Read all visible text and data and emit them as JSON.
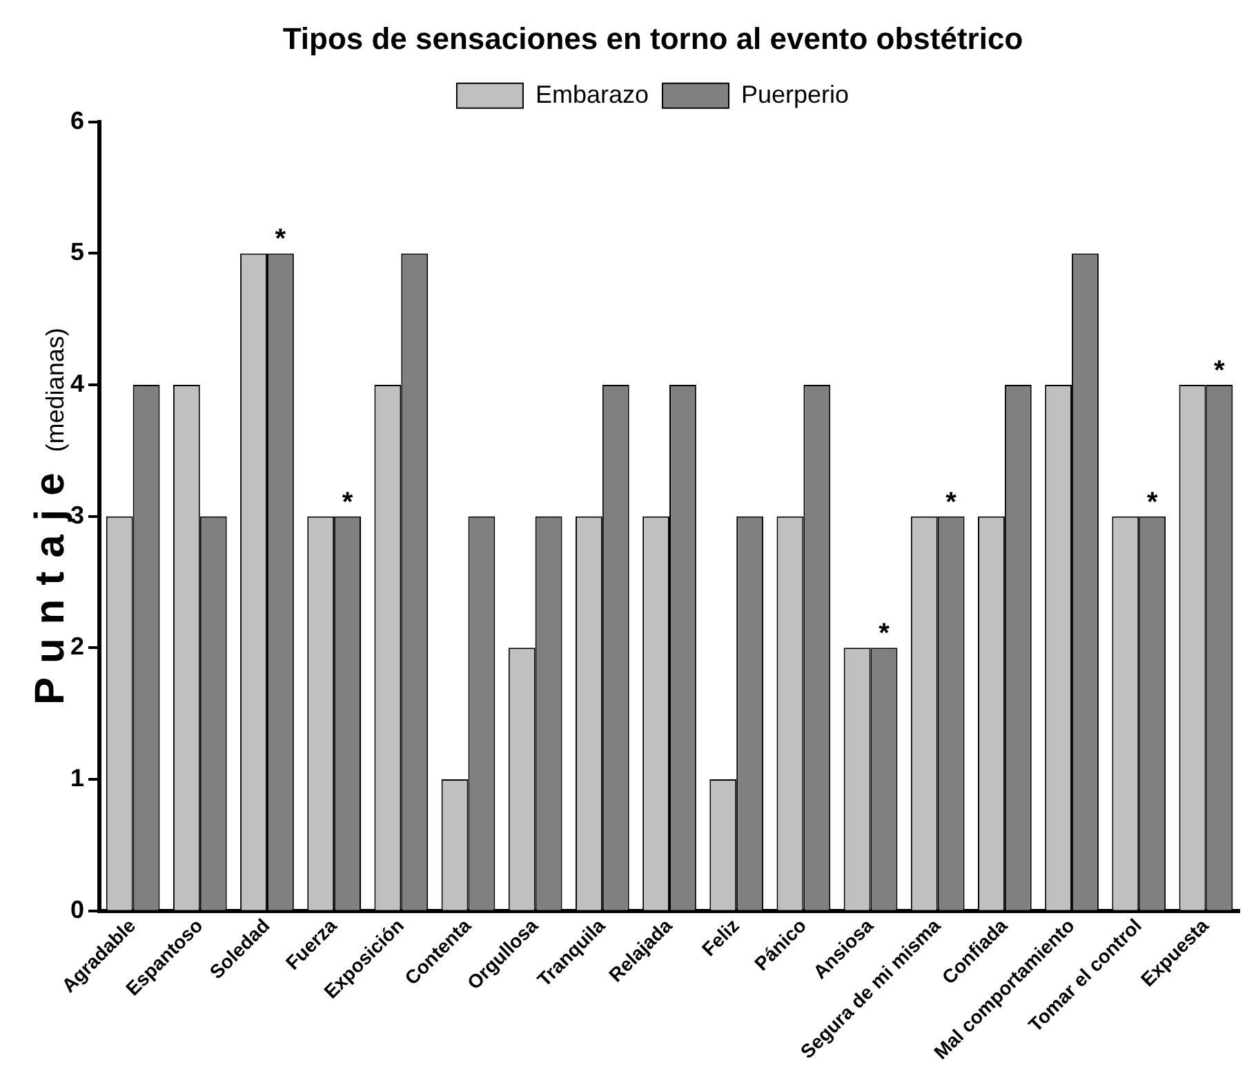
{
  "chart_data": {
    "type": "bar",
    "title": "Tipos de sensaciones en torno al evento obstétrico",
    "ylabel": "Puntaje (medianas)",
    "categories": [
      "Agradable",
      "Espantoso",
      "Soledad",
      "Fuerza",
      "Exposición",
      "Contenta",
      "Orgullosa",
      "Tranquila",
      "Relajada",
      "Feliz",
      "Pánico",
      "Ansiosa",
      "Segura de mi misma",
      "Confiada",
      "Mal comportamiento",
      "Tomar el control",
      "Expuesta"
    ],
    "series": [
      {
        "name": "Embarazo",
        "color": "#c0c0c0",
        "values": [
          3,
          4,
          5,
          3,
          4,
          1,
          2,
          3,
          3,
          1,
          3,
          2,
          3,
          3,
          4,
          3,
          4
        ]
      },
      {
        "name": "Puerperio",
        "color": "#808080",
        "values": [
          4,
          3,
          5,
          3,
          5,
          3,
          3,
          4,
          4,
          3,
          4,
          2,
          3,
          4,
          5,
          3,
          4
        ]
      }
    ],
    "ylim": [
      0,
      6
    ],
    "yticks": [
      0,
      1,
      2,
      3,
      4,
      5,
      6
    ],
    "grid": false,
    "legend": "top",
    "annotations": [
      {
        "text": "*",
        "x": "Soledad",
        "y": 5
      },
      {
        "text": "*",
        "x": "Fuerza",
        "y": 3
      },
      {
        "text": "*",
        "x": "Ansiosa",
        "y": 2
      },
      {
        "text": "*",
        "x": "Segura de mi misma",
        "y": 3
      },
      {
        "text": "*",
        "x": "Tomar el control",
        "y": 3
      },
      {
        "text": "*",
        "x": "Expuesta",
        "y": 4
      }
    ]
  }
}
